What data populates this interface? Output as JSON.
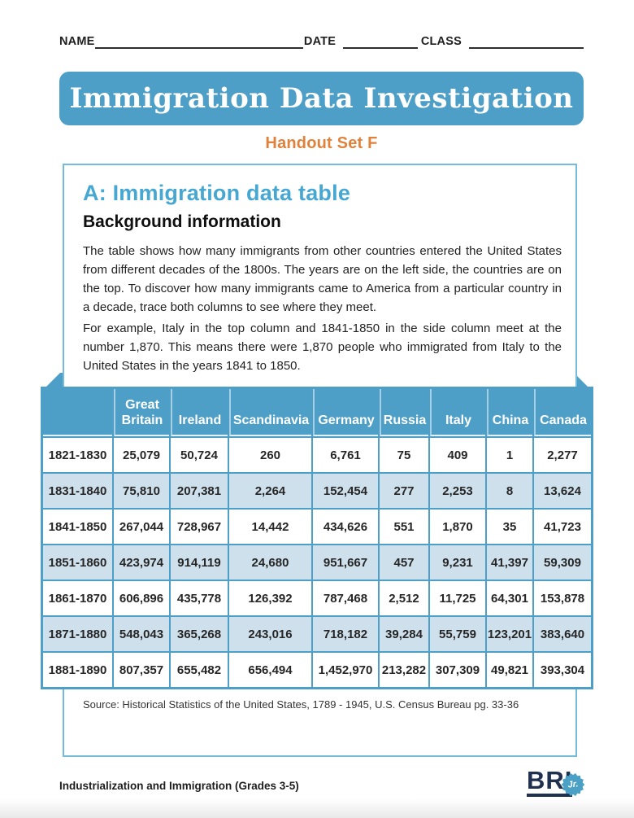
{
  "header_fields": {
    "name_label": "NAME",
    "date_label": "DATE",
    "class_label": "CLASS"
  },
  "banner": {
    "title": "Immigration Data Investigation"
  },
  "subtitle": "Handout Set F",
  "section": {
    "heading": "A: Immigration data table",
    "subheading": "Background information",
    "paragraph1": "The table shows how many immigrants from other countries entered the United States from different decades of the 1800s. The years are on the left side, the countries are on the top. To discover how many immigrants came to America from a particular country in a decade, trace both columns to see where they meet.",
    "paragraph2": "For example, Italy in the top column and 1841-1850 in the side column meet at the number 1,870. This means there were 1,870 people who immigrated from Italy to the United States in the years 1841 to 1850.",
    "source": "Source: Historical Statistics of the United States, 1789 - 1945, U.S. Census Bureau pg. 33-36"
  },
  "table": {
    "columns": [
      "Great Britain",
      "Ireland",
      "Scandinavia",
      "Germany",
      "Russia",
      "Italy",
      "China",
      "Canada"
    ],
    "rows": [
      {
        "label": "1821-1830",
        "values": [
          "25,079",
          "50,724",
          "260",
          "6,761",
          "75",
          "409",
          "1",
          "2,277"
        ]
      },
      {
        "label": "1831-1840",
        "values": [
          "75,810",
          "207,381",
          "2,264",
          "152,454",
          "277",
          "2,253",
          "8",
          "13,624"
        ]
      },
      {
        "label": "1841-1850",
        "values": [
          "267,044",
          "728,967",
          "14,442",
          "434,626",
          "551",
          "1,870",
          "35",
          "41,723"
        ]
      },
      {
        "label": "1851-1860",
        "values": [
          "423,974",
          "914,119",
          "24,680",
          "951,667",
          "457",
          "9,231",
          "41,397",
          "59,309"
        ]
      },
      {
        "label": "1861-1870",
        "values": [
          "606,896",
          "435,778",
          "126,392",
          "787,468",
          "2,512",
          "11,725",
          "64,301",
          "153,878"
        ]
      },
      {
        "label": "1871-1880",
        "values": [
          "548,043",
          "365,268",
          "243,016",
          "718,182",
          "39,284",
          "55,759",
          "123,201",
          "383,640"
        ]
      },
      {
        "label": "1881-1890",
        "values": [
          "807,357",
          "655,482",
          "656,494",
          "1,452,970",
          "213,282",
          "307,309",
          "49,821",
          "393,304"
        ]
      }
    ]
  },
  "footer": {
    "text": "Industrialization and Immigration (Grades 3-5)",
    "logo_text": "BRI",
    "logo_badge": "Jr."
  },
  "colors": {
    "accent_blue": "#4E9FC8",
    "light_row_blue": "#CEE0EC",
    "heading_blue": "#45A7D2",
    "box_border_blue": "#74BBDC",
    "subtitle_orange": "#E0813C",
    "logo_navy": "#20304F",
    "badge_blue": "#4AA0C5"
  }
}
